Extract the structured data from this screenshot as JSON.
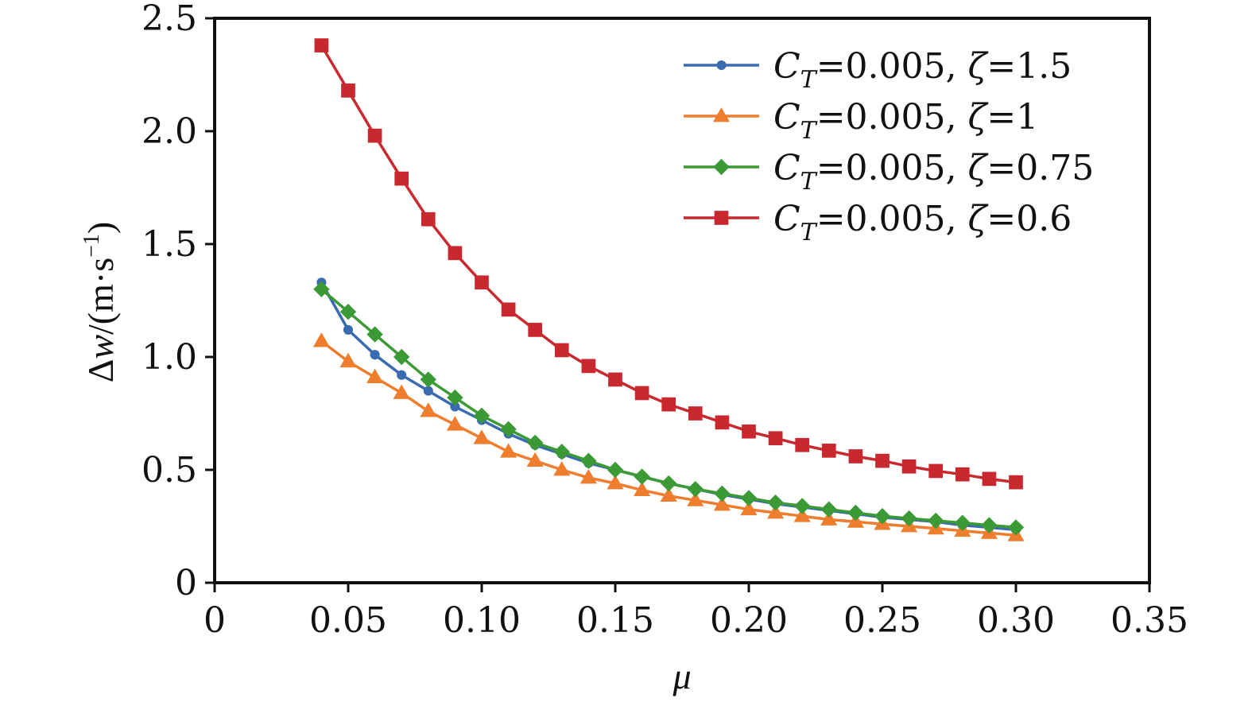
{
  "chart_data": {
    "type": "line",
    "title": "",
    "xlabel": "μ",
    "ylabel": {
      "delta": "Δ",
      "var": "w",
      "unit_open": "/(m·s",
      "exponent": "−1",
      "unit_close": ")"
    },
    "xlim": [
      0,
      0.35
    ],
    "ylim": [
      0,
      2.5
    ],
    "xticks": [
      0,
      0.05,
      0.1,
      0.15,
      0.2,
      0.25,
      0.3,
      0.35
    ],
    "xtick_labels": [
      "0",
      "0.05",
      "0.10",
      "0.15",
      "0.20",
      "0.25",
      "0.30",
      "0.35"
    ],
    "yticks": [
      0,
      0.5,
      1.0,
      1.5,
      2.0,
      2.5
    ],
    "ytick_labels": [
      "0",
      "0.5",
      "1.0",
      "1.5",
      "2.0",
      "2.5"
    ],
    "grid": false,
    "legend_position": "top-right",
    "x": [
      0.04,
      0.05,
      0.06,
      0.07,
      0.08,
      0.09,
      0.1,
      0.11,
      0.12,
      0.13,
      0.14,
      0.15,
      0.16,
      0.17,
      0.18,
      0.19,
      0.2,
      0.21,
      0.22,
      0.23,
      0.24,
      0.25,
      0.26,
      0.27,
      0.28,
      0.29,
      0.3
    ],
    "series": [
      {
        "name": "CT=0.005, ζ=1.5",
        "legend": {
          "c": "C",
          "sub": "T",
          "mid": "=0.005, ",
          "zeta": "ζ",
          "end": "=1.5"
        },
        "color": "#3a6bb0",
        "marker": "circle",
        "values": [
          1.33,
          1.12,
          1.01,
          0.92,
          0.85,
          0.78,
          0.72,
          0.66,
          0.61,
          0.57,
          0.53,
          0.5,
          0.47,
          0.44,
          0.415,
          0.39,
          0.37,
          0.35,
          0.335,
          0.32,
          0.305,
          0.29,
          0.28,
          0.27,
          0.255,
          0.245,
          0.235
        ]
      },
      {
        "name": "CT=0.005, ζ=1",
        "legend": {
          "c": "C",
          "sub": "T",
          "mid": "=0.005, ",
          "zeta": "ζ",
          "end": "=1"
        },
        "color": "#ee7d2e",
        "marker": "triangle",
        "values": [
          1.07,
          0.98,
          0.91,
          0.84,
          0.76,
          0.7,
          0.64,
          0.58,
          0.54,
          0.5,
          0.465,
          0.44,
          0.41,
          0.385,
          0.365,
          0.345,
          0.325,
          0.31,
          0.295,
          0.28,
          0.27,
          0.26,
          0.25,
          0.24,
          0.23,
          0.22,
          0.21
        ]
      },
      {
        "name": "CT=0.005, ζ=0.75",
        "legend": {
          "c": "C",
          "sub": "T",
          "mid": "=0.005, ",
          "zeta": "ζ",
          "end": "=0.75"
        },
        "color": "#3b9a35",
        "marker": "diamond",
        "values": [
          1.3,
          1.2,
          1.1,
          1.0,
          0.9,
          0.82,
          0.74,
          0.68,
          0.62,
          0.58,
          0.54,
          0.5,
          0.47,
          0.44,
          0.415,
          0.395,
          0.375,
          0.355,
          0.34,
          0.325,
          0.31,
          0.295,
          0.285,
          0.275,
          0.265,
          0.255,
          0.245
        ]
      },
      {
        "name": "CT=0.005, ζ=0.6",
        "legend": {
          "c": "C",
          "sub": "T",
          "mid": "=0.005, ",
          "zeta": "ζ",
          "end": "=0.6"
        },
        "color": "#c8282e",
        "marker": "square",
        "values": [
          2.38,
          2.18,
          1.98,
          1.79,
          1.61,
          1.46,
          1.33,
          1.21,
          1.12,
          1.03,
          0.96,
          0.9,
          0.84,
          0.79,
          0.75,
          0.71,
          0.67,
          0.64,
          0.61,
          0.585,
          0.56,
          0.54,
          0.515,
          0.495,
          0.48,
          0.46,
          0.445
        ]
      }
    ]
  }
}
